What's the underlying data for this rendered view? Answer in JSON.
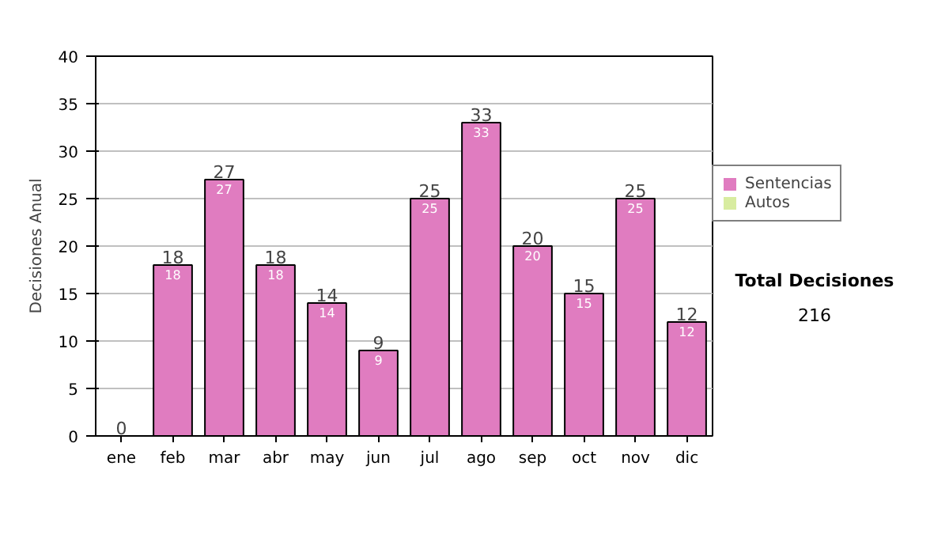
{
  "chart_data": {
    "type": "bar",
    "ylabel": "Decisiones Anual",
    "categories": [
      "ene",
      "feb",
      "mar",
      "abr",
      "may",
      "jun",
      "jul",
      "ago",
      "sep",
      "oct",
      "nov",
      "dic"
    ],
    "stacked": true,
    "series": [
      {
        "name": "Sentencias",
        "color": "#e07cc0",
        "values": [
          0,
          18,
          27,
          18,
          14,
          9,
          25,
          33,
          20,
          15,
          25,
          12
        ],
        "value_labels": [
          null,
          "18",
          "27",
          "18",
          "14",
          "9",
          "25",
          "33",
          "20",
          "15",
          "25",
          "12"
        ]
      },
      {
        "name": "Autos",
        "color": "#d8eca0",
        "values": [
          0,
          0,
          0,
          0,
          0,
          0,
          0,
          0,
          0,
          0,
          0,
          0
        ]
      }
    ],
    "totals": [
      "0",
      "18",
      "27",
      "18",
      "14",
      "9",
      "25",
      "33",
      "20",
      "15",
      "25",
      "12"
    ],
    "ylim": [
      0,
      40
    ],
    "yticks": [
      0,
      5,
      10,
      15,
      20,
      25,
      30,
      35,
      40
    ],
    "grid": "y",
    "legend": "right",
    "annotations": [
      "Total Decisiones",
      "216"
    ]
  }
}
